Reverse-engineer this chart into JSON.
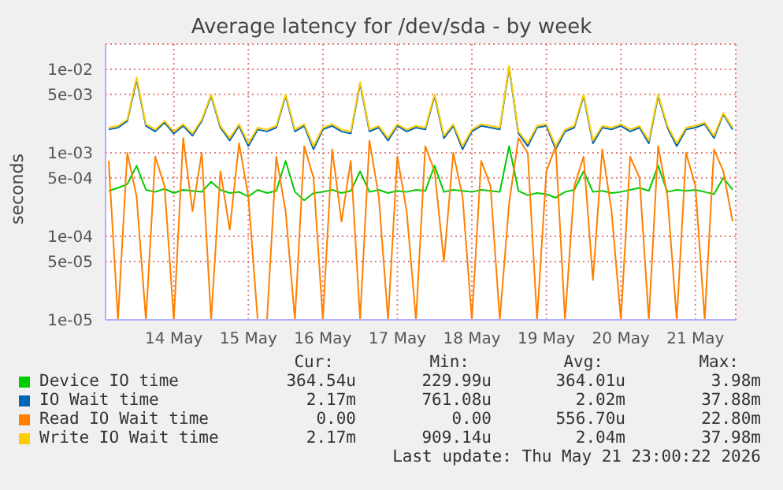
{
  "chart_data": {
    "type": "line",
    "title": "Average latency for /dev/sda - by week",
    "ylabel": "seconds",
    "log": "y",
    "grid": true,
    "legend": "bottom",
    "xlim": [
      "2026-05-13T02:00",
      "2026-05-21T13:00"
    ],
    "xticks": [
      {
        "value": "2026-05-14",
        "label": "14 May"
      },
      {
        "value": "2026-05-15",
        "label": "15 May"
      },
      {
        "value": "2026-05-16",
        "label": "16 May"
      },
      {
        "value": "2026-05-17",
        "label": "17 May"
      },
      {
        "value": "2026-05-18",
        "label": "18 May"
      },
      {
        "value": "2026-05-19",
        "label": "19 May"
      },
      {
        "value": "2026-05-20",
        "label": "20 May"
      },
      {
        "value": "2026-05-21",
        "label": "21 May"
      }
    ],
    "ylim": [
      1e-05,
      0.02
    ],
    "yticks": [
      {
        "value": 1e-05,
        "label": "1e-05"
      },
      {
        "value": 5e-05,
        "label": "5e-05"
      },
      {
        "value": 0.0001,
        "label": "1e-04"
      },
      {
        "value": 0.0005,
        "label": "5e-04"
      },
      {
        "value": 0.001,
        "label": "1e-03"
      },
      {
        "value": 0.005,
        "label": "5e-03"
      },
      {
        "value": 0.01,
        "label": "1e-02"
      }
    ],
    "x": [
      "2026-05-13T03:00",
      "2026-05-13T06:00",
      "2026-05-13T09:00",
      "2026-05-13T12:00",
      "2026-05-13T15:00",
      "2026-05-13T18:00",
      "2026-05-13T21:00",
      "2026-05-14T00:00",
      "2026-05-14T03:00",
      "2026-05-14T06:00",
      "2026-05-14T09:00",
      "2026-05-14T12:00",
      "2026-05-14T15:00",
      "2026-05-14T18:00",
      "2026-05-14T21:00",
      "2026-05-15T00:00",
      "2026-05-15T03:00",
      "2026-05-15T06:00",
      "2026-05-15T09:00",
      "2026-05-15T12:00",
      "2026-05-15T15:00",
      "2026-05-15T18:00",
      "2026-05-15T21:00",
      "2026-05-16T00:00",
      "2026-05-16T03:00",
      "2026-05-16T06:00",
      "2026-05-16T09:00",
      "2026-05-16T12:00",
      "2026-05-16T15:00",
      "2026-05-16T18:00",
      "2026-05-16T21:00",
      "2026-05-17T00:00",
      "2026-05-17T03:00",
      "2026-05-17T06:00",
      "2026-05-17T09:00",
      "2026-05-17T12:00",
      "2026-05-17T15:00",
      "2026-05-17T18:00",
      "2026-05-17T21:00",
      "2026-05-18T00:00",
      "2026-05-18T03:00",
      "2026-05-18T06:00",
      "2026-05-18T09:00",
      "2026-05-18T12:00",
      "2026-05-18T15:00",
      "2026-05-18T18:00",
      "2026-05-18T21:00",
      "2026-05-19T00:00",
      "2026-05-19T03:00",
      "2026-05-19T06:00",
      "2026-05-19T09:00",
      "2026-05-19T12:00",
      "2026-05-19T15:00",
      "2026-05-19T18:00",
      "2026-05-19T21:00",
      "2026-05-20T00:00",
      "2026-05-20T03:00",
      "2026-05-20T06:00",
      "2026-05-20T09:00",
      "2026-05-20T12:00",
      "2026-05-20T15:00",
      "2026-05-20T18:00",
      "2026-05-20T21:00",
      "2026-05-21T00:00",
      "2026-05-21T03:00",
      "2026-05-21T06:00",
      "2026-05-21T09:00",
      "2026-05-21T12:00"
    ],
    "series": [
      {
        "name": "Device IO time",
        "color": "#00cc00",
        "values": [
          0.00035,
          0.00038,
          0.00042,
          0.0007,
          0.00036,
          0.00034,
          0.00037,
          0.00033,
          0.00036,
          0.00035,
          0.00034,
          0.00045,
          0.00036,
          0.00033,
          0.00034,
          0.0003,
          0.00036,
          0.00033,
          0.00035,
          0.0008,
          0.00034,
          0.00027,
          0.00033,
          0.00034,
          0.00036,
          0.00033,
          0.00035,
          0.0006,
          0.00034,
          0.00036,
          0.00033,
          0.00035,
          0.00034,
          0.00036,
          0.00035,
          0.0007,
          0.00034,
          0.00036,
          0.00035,
          0.00034,
          0.00036,
          0.00035,
          0.00034,
          0.0012,
          0.00035,
          0.00031,
          0.00033,
          0.00032,
          0.00029,
          0.00034,
          0.00036,
          0.0006,
          0.00034,
          0.00035,
          0.00033,
          0.00034,
          0.00036,
          0.00038,
          0.00035,
          0.0007,
          0.00034,
          0.00036,
          0.00035,
          0.00036,
          0.00034,
          0.00032,
          0.0005,
          0.00036
        ]
      },
      {
        "name": "IO Wait time",
        "color": "#0066b3",
        "values": [
          0.0019,
          0.002,
          0.0024,
          0.0075,
          0.0021,
          0.0018,
          0.0023,
          0.0017,
          0.0021,
          0.0016,
          0.0024,
          0.0048,
          0.002,
          0.0014,
          0.0021,
          0.0012,
          0.0019,
          0.0018,
          0.002,
          0.0048,
          0.0018,
          0.0021,
          0.0011,
          0.0019,
          0.0021,
          0.0018,
          0.0017,
          0.0067,
          0.0018,
          0.002,
          0.0014,
          0.0021,
          0.0018,
          0.002,
          0.0019,
          0.0048,
          0.0015,
          0.0021,
          0.0011,
          0.0018,
          0.0021,
          0.002,
          0.0019,
          0.0105,
          0.0017,
          0.0012,
          0.002,
          0.0021,
          0.0011,
          0.0018,
          0.002,
          0.0048,
          0.0013,
          0.002,
          0.0019,
          0.0021,
          0.0018,
          0.002,
          0.0013,
          0.0048,
          0.002,
          0.0012,
          0.0019,
          0.002,
          0.0022,
          0.0015,
          0.0029,
          0.0019
        ]
      },
      {
        "name": "Read IO Wait time",
        "color": "#ff8000",
        "values": [
          0.0008,
          1e-05,
          0.001,
          0.0003,
          1e-05,
          0.0009,
          0.0004,
          1e-05,
          0.0015,
          0.0002,
          0.001,
          1e-05,
          0.0006,
          0.00012,
          0.0013,
          0.0003,
          1e-05,
          1e-05,
          0.0009,
          0.0002,
          1e-05,
          0.0012,
          0.0005,
          1e-05,
          0.0011,
          0.00015,
          0.0008,
          1e-05,
          0.0014,
          0.0003,
          1e-05,
          0.0009,
          0.0002,
          1e-05,
          0.0012,
          0.0006,
          5e-05,
          0.001,
          0.0003,
          1e-05,
          0.0008,
          0.0004,
          1e-05,
          0.00025,
          0.0015,
          0.001,
          1e-05,
          0.0006,
          0.0012,
          1e-05,
          0.0004,
          0.0009,
          3e-05,
          0.0011,
          0.0002,
          1e-05,
          0.0009,
          0.0005,
          1e-05,
          0.0012,
          0.0003,
          1e-05,
          0.001,
          0.0004,
          1e-05,
          0.0011,
          0.0006,
          0.00015
        ]
      },
      {
        "name": "Write IO Wait time",
        "color": "#ffcc00",
        "values": [
          0.002,
          0.0021,
          0.0025,
          0.008,
          0.0022,
          0.0019,
          0.0024,
          0.0018,
          0.0022,
          0.0017,
          0.0025,
          0.005,
          0.0021,
          0.0015,
          0.0022,
          0.0013,
          0.002,
          0.0019,
          0.0021,
          0.005,
          0.0019,
          0.0022,
          0.0012,
          0.002,
          0.0022,
          0.0019,
          0.0018,
          0.007,
          0.0019,
          0.0021,
          0.0015,
          0.0022,
          0.0019,
          0.0021,
          0.002,
          0.005,
          0.0016,
          0.0022,
          0.0012,
          0.0019,
          0.0022,
          0.0021,
          0.002,
          0.011,
          0.0018,
          0.0013,
          0.0021,
          0.0022,
          0.0012,
          0.0019,
          0.0021,
          0.005,
          0.0014,
          0.0021,
          0.002,
          0.0022,
          0.0019,
          0.0021,
          0.0014,
          0.005,
          0.0021,
          0.0013,
          0.002,
          0.0021,
          0.0023,
          0.0016,
          0.003,
          0.002
        ]
      }
    ],
    "annotations": [
      "Cur:",
      "Min:",
      "Avg:",
      "Max:",
      "364.54u",
      "229.99u",
      "364.01u",
      "3.98m",
      "2.17m",
      "761.08u",
      "2.02m",
      "37.88m",
      "0.00",
      "0.00",
      "556.70u",
      "22.80m",
      "2.17m",
      "909.14u",
      "2.04m",
      "37.98m",
      "Last update: Thu May 21 23:00:22 2026"
    ]
  }
}
